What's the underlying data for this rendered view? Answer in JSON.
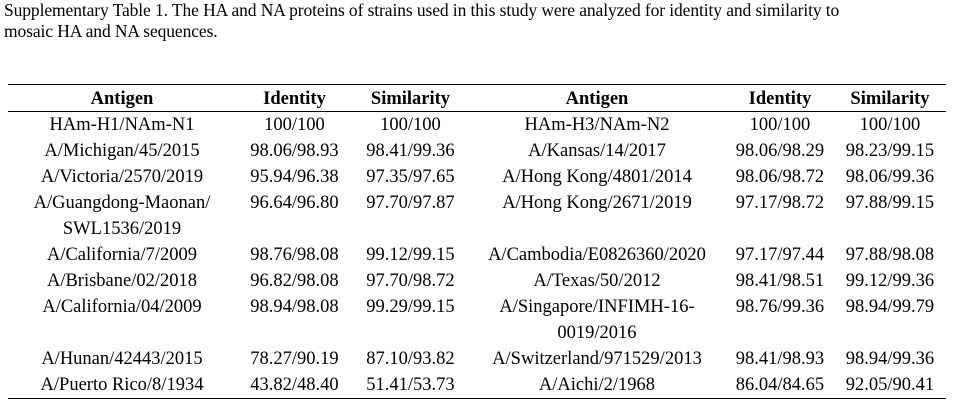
{
  "caption": {
    "line1": "Supplementary Table 1. The HA and NA proteins of strains used in this study were analyzed for identity and similarity to",
    "line2": "mosaic HA and NA sequences."
  },
  "table": {
    "headers": [
      "Antigen",
      "Identity",
      "Similarity",
      "Antigen",
      "Identity",
      "Similarity"
    ],
    "rows": [
      [
        "HAm-H1/NAm-N1",
        "100/100",
        "100/100",
        "HAm-H3/NAm-N2",
        "100/100",
        "100/100"
      ],
      [
        "A/Michigan/45/2015",
        "98.06/98.93",
        "98.41/99.36",
        "A/Kansas/14/2017",
        "98.06/98.29",
        "98.23/99.15"
      ],
      [
        "A/Victoria/2570/2019",
        "95.94/96.38",
        "97.35/97.65",
        "A/Hong Kong/4801/2014",
        "98.06/98.72",
        "98.06/99.36"
      ],
      [
        "A/Guangdong-Maonan/",
        "96.64/96.80",
        "97.70/97.87",
        "A/Hong Kong/2671/2019",
        "97.17/98.72",
        "97.88/99.15"
      ],
      [
        "SWL1536/2019",
        "",
        "",
        "",
        "",
        ""
      ],
      [
        "A/California/7/2009",
        "98.76/98.08",
        "99.12/99.15",
        "A/Cambodia/E0826360/2020",
        "97.17/97.44",
        "97.88/98.08"
      ],
      [
        "A/Brisbane/02/2018",
        "96.82/98.08",
        "97.70/98.72",
        "A/Texas/50/2012",
        "98.41/98.51",
        "99.12/99.36"
      ],
      [
        "A/California/04/2009",
        "98.94/98.08",
        "99.29/99.15",
        "A/Singapore/INFIMH-16-",
        "98.76/99.36",
        "98.94/99.79"
      ],
      [
        "",
        "",
        "",
        "0019/2016",
        "",
        ""
      ],
      [
        "A/Hunan/42443/2015",
        "78.27/90.19",
        "87.10/93.82",
        "A/Switzerland/971529/2013",
        "98.41/98.93",
        "98.94/99.36"
      ],
      [
        "A/Puerto Rico/8/1934",
        "43.82/48.40",
        "51.41/53.73",
        "A/Aichi/2/1968",
        "86.04/84.65",
        "92.05/90.41"
      ]
    ]
  }
}
